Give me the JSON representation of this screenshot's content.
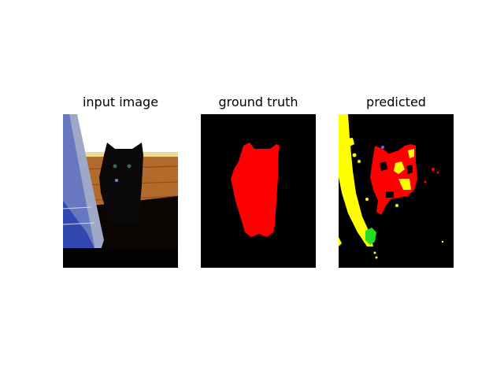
{
  "panels": [
    {
      "title": "input image"
    },
    {
      "title": "ground truth"
    },
    {
      "title": "predicted"
    }
  ],
  "colors": {
    "background": "#ffffff",
    "mask_background": "#000000",
    "class_cat": "#ff0000",
    "class_yellow": "#ffff00",
    "class_green": "#22dd22",
    "floor_wood": "#b06a2a",
    "wall_blue": "#5a6ec8"
  }
}
